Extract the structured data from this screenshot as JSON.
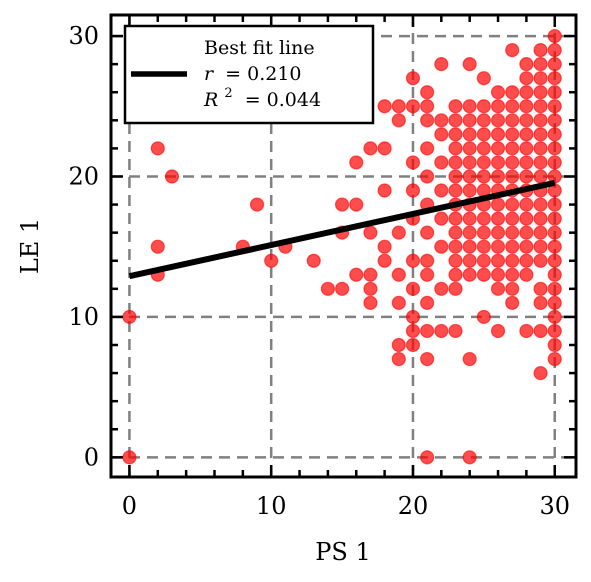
{
  "chart_data": {
    "type": "scatter",
    "xlabel": "PS 1",
    "ylabel": "LE 1",
    "xlim": [
      -1.3,
      31.5
    ],
    "ylim": [
      -1.4,
      31.5
    ],
    "x_ticks": [
      0,
      10,
      20,
      30
    ],
    "y_ticks": [
      0,
      10,
      20,
      30
    ],
    "grid": true,
    "legend": {
      "placement": "top-left",
      "lines": [
        "Best fit line",
        "r = 0.210",
        "R² = 0.044"
      ],
      "r_prefix": "r",
      "r_value": "= 0.210",
      "r2_prefix": "R",
      "r2_sup": "2",
      "r2_value": "= 0.044"
    },
    "colors": {
      "points": "#ff0000",
      "fit_line": "#000000",
      "grid": "#808080"
    },
    "best_fit": {
      "slope": 0.2217,
      "intercept": 12.9,
      "x_range": [
        0,
        30
      ]
    },
    "points": [
      [
        0,
        0
      ],
      [
        0,
        10
      ],
      [
        2,
        22
      ],
      [
        2,
        15
      ],
      [
        2,
        13
      ],
      [
        3,
        20
      ],
      [
        8,
        15
      ],
      [
        9,
        18
      ],
      [
        10,
        14
      ],
      [
        11,
        15
      ],
      [
        13,
        14
      ],
      [
        14,
        12
      ],
      [
        15,
        12
      ],
      [
        15,
        16
      ],
      [
        15,
        18
      ],
      [
        16,
        18
      ],
      [
        16,
        13
      ],
      [
        16,
        21
      ],
      [
        17,
        12
      ],
      [
        17,
        11
      ],
      [
        17,
        13
      ],
      [
        17,
        22
      ],
      [
        17,
        16
      ],
      [
        18,
        22
      ],
      [
        18,
        14
      ],
      [
        18,
        15
      ],
      [
        18,
        19
      ],
      [
        18,
        25
      ],
      [
        19,
        25
      ],
      [
        19,
        16
      ],
      [
        19,
        13
      ],
      [
        19,
        7
      ],
      [
        19,
        8
      ],
      [
        19,
        11
      ],
      [
        19,
        24
      ],
      [
        20,
        8
      ],
      [
        20,
        9
      ],
      [
        20,
        10
      ],
      [
        20,
        12
      ],
      [
        20,
        14
      ],
      [
        20,
        17
      ],
      [
        20,
        19
      ],
      [
        20,
        21
      ],
      [
        20,
        25
      ],
      [
        20,
        27
      ],
      [
        21,
        0
      ],
      [
        21,
        7
      ],
      [
        21,
        9
      ],
      [
        21,
        11
      ],
      [
        21,
        13
      ],
      [
        21,
        14
      ],
      [
        21,
        16
      ],
      [
        21,
        18
      ],
      [
        21,
        20
      ],
      [
        21,
        22
      ],
      [
        21,
        24
      ],
      [
        21,
        25
      ],
      [
        21,
        26
      ],
      [
        22,
        9
      ],
      [
        22,
        12
      ],
      [
        22,
        15
      ],
      [
        22,
        17
      ],
      [
        22,
        19
      ],
      [
        22,
        21
      ],
      [
        22,
        23
      ],
      [
        22,
        24
      ],
      [
        22,
        28
      ],
      [
        23,
        9
      ],
      [
        23,
        12
      ],
      [
        23,
        13
      ],
      [
        23,
        14
      ],
      [
        23,
        15
      ],
      [
        23,
        16
      ],
      [
        23,
        17
      ],
      [
        23,
        18
      ],
      [
        23,
        19
      ],
      [
        23,
        20
      ],
      [
        23,
        21
      ],
      [
        23,
        22
      ],
      [
        23,
        23
      ],
      [
        23,
        24
      ],
      [
        23,
        25
      ],
      [
        24,
        0
      ],
      [
        24,
        7
      ],
      [
        24,
        13
      ],
      [
        24,
        14
      ],
      [
        24,
        15
      ],
      [
        24,
        16
      ],
      [
        24,
        17
      ],
      [
        24,
        18
      ],
      [
        24,
        19
      ],
      [
        24,
        20
      ],
      [
        24,
        21
      ],
      [
        24,
        22
      ],
      [
        24,
        23
      ],
      [
        24,
        24
      ],
      [
        24,
        25
      ],
      [
        24,
        28
      ],
      [
        25,
        10
      ],
      [
        25,
        13
      ],
      [
        25,
        14
      ],
      [
        25,
        15
      ],
      [
        25,
        16
      ],
      [
        25,
        17
      ],
      [
        25,
        18
      ],
      [
        25,
        19
      ],
      [
        25,
        20
      ],
      [
        25,
        21
      ],
      [
        25,
        22
      ],
      [
        25,
        23
      ],
      [
        25,
        24
      ],
      [
        25,
        25
      ],
      [
        25,
        27
      ],
      [
        26,
        9
      ],
      [
        26,
        12
      ],
      [
        26,
        13
      ],
      [
        26,
        14
      ],
      [
        26,
        15
      ],
      [
        26,
        16
      ],
      [
        26,
        17
      ],
      [
        26,
        18
      ],
      [
        26,
        19
      ],
      [
        26,
        20
      ],
      [
        26,
        21
      ],
      [
        26,
        22
      ],
      [
        26,
        23
      ],
      [
        26,
        24
      ],
      [
        26,
        25
      ],
      [
        26,
        26
      ],
      [
        27,
        11
      ],
      [
        27,
        12
      ],
      [
        27,
        13
      ],
      [
        27,
        14
      ],
      [
        27,
        15
      ],
      [
        27,
        16
      ],
      [
        27,
        17
      ],
      [
        27,
        18
      ],
      [
        27,
        19
      ],
      [
        27,
        20
      ],
      [
        27,
        21
      ],
      [
        27,
        22
      ],
      [
        27,
        23
      ],
      [
        27,
        24
      ],
      [
        27,
        25
      ],
      [
        27,
        26
      ],
      [
        27,
        29
      ],
      [
        28,
        9
      ],
      [
        28,
        13
      ],
      [
        28,
        14
      ],
      [
        28,
        15
      ],
      [
        28,
        16
      ],
      [
        28,
        17
      ],
      [
        28,
        18
      ],
      [
        28,
        19
      ],
      [
        28,
        20
      ],
      [
        28,
        21
      ],
      [
        28,
        22
      ],
      [
        28,
        23
      ],
      [
        28,
        24
      ],
      [
        28,
        25
      ],
      [
        28,
        26
      ],
      [
        28,
        27
      ],
      [
        28,
        28
      ],
      [
        29,
        6
      ],
      [
        29,
        9
      ],
      [
        29,
        11
      ],
      [
        29,
        12
      ],
      [
        29,
        14
      ],
      [
        29,
        15
      ],
      [
        29,
        16
      ],
      [
        29,
        17
      ],
      [
        29,
        18
      ],
      [
        29,
        19
      ],
      [
        29,
        20
      ],
      [
        29,
        21
      ],
      [
        29,
        22
      ],
      [
        29,
        23
      ],
      [
        29,
        24
      ],
      [
        29,
        25
      ],
      [
        29,
        26
      ],
      [
        29,
        27
      ],
      [
        29,
        28
      ],
      [
        29,
        29
      ],
      [
        30,
        7
      ],
      [
        30,
        8
      ],
      [
        30,
        9
      ],
      [
        30,
        10
      ],
      [
        30,
        11
      ],
      [
        30,
        12
      ],
      [
        30,
        13
      ],
      [
        30,
        14
      ],
      [
        30,
        15
      ],
      [
        30,
        16
      ],
      [
        30,
        17
      ],
      [
        30,
        18
      ],
      [
        30,
        19
      ],
      [
        30,
        20
      ],
      [
        30,
        21
      ],
      [
        30,
        22
      ],
      [
        30,
        23
      ],
      [
        30,
        24
      ],
      [
        30,
        25
      ],
      [
        30,
        26
      ],
      [
        30,
        27
      ],
      [
        30,
        28
      ],
      [
        30,
        29
      ],
      [
        30,
        30
      ]
    ]
  }
}
